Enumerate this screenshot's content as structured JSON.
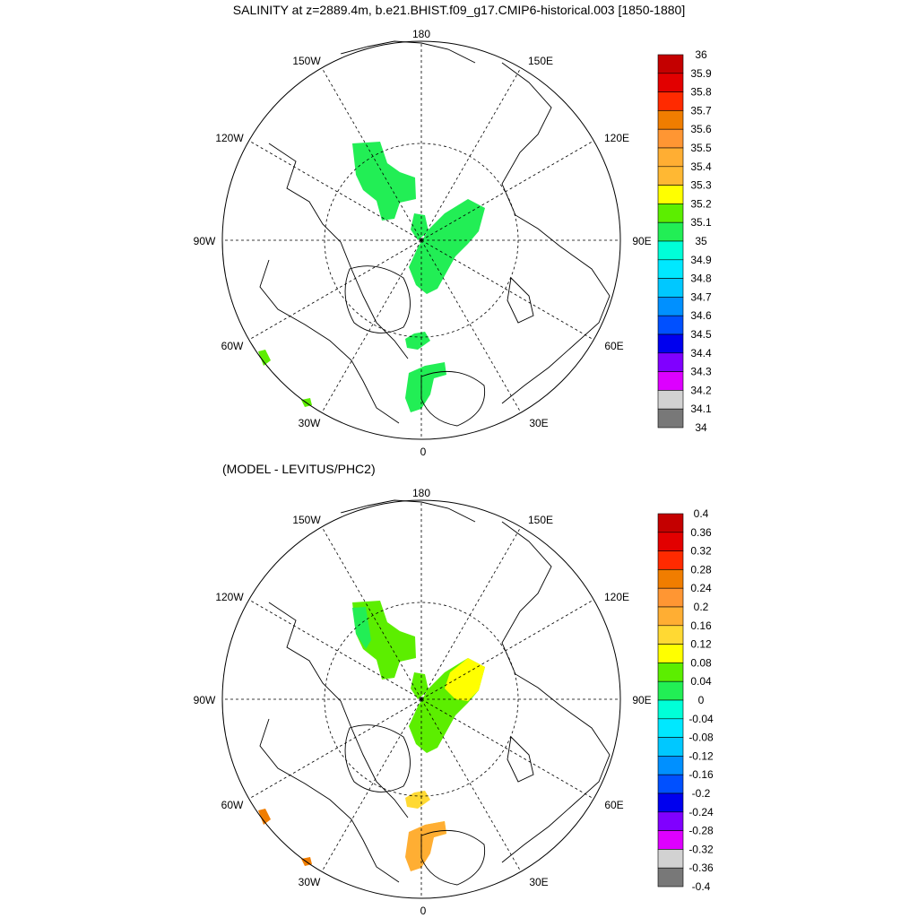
{
  "title": "SALINITY at z=2889.4m, b.e21.BHIST.f09_g17.CMIP6-historical.003 [1850-1880]",
  "subtitle": "(MODEL - LEVITUS/PHC2)",
  "longitude_labels": [
    "180",
    "150E",
    "120E",
    "90E",
    "60E",
    "30E",
    "0",
    "30W",
    "60W",
    "90W",
    "120W",
    "150W"
  ],
  "panels": [
    {
      "name": "model",
      "colorbar": {
        "labels": [
          "36",
          "35.9",
          "35.8",
          "35.7",
          "35.6",
          "35.5",
          "35.4",
          "35.3",
          "35.2",
          "35.1",
          "35",
          "34.9",
          "34.8",
          "34.7",
          "34.6",
          "34.5",
          "34.4",
          "34.3",
          "34.2",
          "34.1",
          "34"
        ],
        "colors": [
          "#c40000",
          "#e20000",
          "#ff2a00",
          "#f07d00",
          "#ff9633",
          "#ffae33",
          "#ffb833",
          "#ffff00",
          "#5cee00",
          "#22ee55",
          "#00ffd8",
          "#00e8ff",
          "#00c8ff",
          "#0090ff",
          "#0050ff",
          "#0000ee",
          "#8000ff",
          "#dd00ff",
          "#d2d2d2",
          "#787878"
        ]
      },
      "patches": [
        {
          "region": "makarov-basin-pacific-side",
          "color": "#22ee55"
        },
        {
          "region": "eurasian-basin-central",
          "color": "#22ee55"
        },
        {
          "region": "lomonosov-fragment",
          "color": "#22ee55"
        },
        {
          "region": "fram-strait-upper",
          "color": "#22ee55"
        },
        {
          "region": "greenland-sea",
          "color": "#22ee55"
        },
        {
          "region": "labrador-sea-edge",
          "color": "#5cee00"
        },
        {
          "region": "north-atlantic-edge",
          "color": "#5cee00"
        }
      ]
    },
    {
      "name": "difference",
      "colorbar": {
        "labels": [
          "0.4",
          "0.36",
          "0.32",
          "0.28",
          "0.24",
          "0.2",
          "0.16",
          "0.12",
          "0.08",
          "0.04",
          "0",
          "-0.04",
          "-0.08",
          "-0.12",
          "-0.16",
          "-0.2",
          "-0.24",
          "-0.28",
          "-0.32",
          "-0.36",
          "-0.4"
        ],
        "colors": [
          "#c40000",
          "#e20000",
          "#ff2a00",
          "#f07d00",
          "#ff9633",
          "#ffae33",
          "#ffd933",
          "#ffff00",
          "#5cee00",
          "#22ee55",
          "#00ffd8",
          "#00e8ff",
          "#00c8ff",
          "#0090ff",
          "#0050ff",
          "#0000ee",
          "#8000ff",
          "#dd00ff",
          "#d2d2d2",
          "#787878"
        ]
      },
      "patches": [
        {
          "region": "makarov-basin-pacific-side",
          "color": "#5cee00"
        },
        {
          "region": "makarov-basin-sub-area",
          "color": "#22ee55"
        },
        {
          "region": "eurasian-basin-central",
          "color": "#5cee00"
        },
        {
          "region": "eurasian-basin-north",
          "color": "#ffff00"
        },
        {
          "region": "lomonosov-fragment",
          "color": "#5cee00"
        },
        {
          "region": "fram-strait-upper",
          "color": "#ffd933"
        },
        {
          "region": "greenland-sea-north",
          "color": "#ffff00"
        },
        {
          "region": "greenland-sea",
          "color": "#ffae33"
        },
        {
          "region": "labrador-sea-edge",
          "color": "#f07d00"
        },
        {
          "region": "north-atlantic-edge",
          "color": "#f07d00"
        }
      ]
    }
  ]
}
